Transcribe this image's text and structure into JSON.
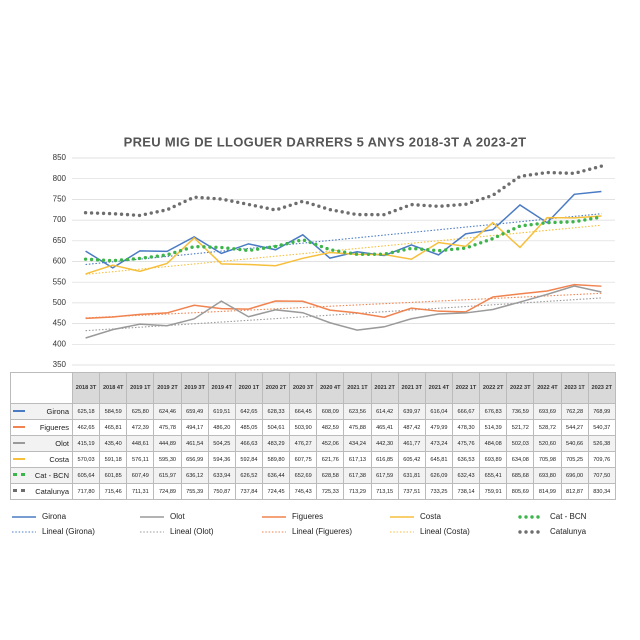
{
  "chart_data": {
    "type": "line",
    "title": "PREU MIG DE LLOGUER DARRERS 5 ANYS 2018-3T A 2023-2T",
    "categories": [
      "2018 3T",
      "2018 4T",
      "2019 1T",
      "2019 2T",
      "2019 3T",
      "2019 4T",
      "2020 1T",
      "2020 2T",
      "2020 3T",
      "2020 4T",
      "2021 1T",
      "2021 2T",
      "2021 3T",
      "2021 4T",
      "2022 1T",
      "2022 2T",
      "2022 3T",
      "2022 4T",
      "2023 1T",
      "2023 2T"
    ],
    "ylim": [
      350,
      850
    ],
    "yticks": [
      350,
      400,
      450,
      500,
      550,
      600,
      650,
      700,
      750,
      800,
      850
    ],
    "grid": true,
    "series": [
      {
        "name": "Girona",
        "color": "#4a7bc4",
        "dash": "solid",
        "trendline": "Lineal (Girona)",
        "values": [
          625.18,
          584.59,
          625.8,
          624.46,
          659.49,
          619.51,
          642.65,
          628.33,
          664.45,
          608.09,
          623.56,
          614.42,
          639.97,
          616.04,
          666.67,
          676.83,
          736.59,
          693.69,
          762.28,
          768.99
        ],
        "value_labels": [
          "625,18",
          "584,59",
          "625,80",
          "624,46",
          "659,49",
          "619,51",
          "642,65",
          "628,33",
          "664,45",
          "608,09",
          "623,56",
          "614,42",
          "639,97",
          "616,04",
          "666,67",
          "676,83",
          "736,59",
          "693,69",
          "762,28",
          "768,99"
        ]
      },
      {
        "name": "Figueres",
        "color": "#f0834f",
        "dash": "solid",
        "trendline": "Lineal (Figueres)",
        "values": [
          462.65,
          465.81,
          472.39,
          475.78,
          494.17,
          486.2,
          485.05,
          504.61,
          503.9,
          482.59,
          475.88,
          465.41,
          487.42,
          479.99,
          478.3,
          514.39,
          521.72,
          528.72,
          544.27,
          540.37
        ],
        "value_labels": [
          "462,65",
          "465,81",
          "472,39",
          "475,78",
          "494,17",
          "486,20",
          "485,05",
          "504,61",
          "503,90",
          "482,59",
          "475,88",
          "465,41",
          "487,42",
          "479,99",
          "478,30",
          "514,39",
          "521,72",
          "528,72",
          "544,27",
          "540,37"
        ]
      },
      {
        "name": "Olot",
        "color": "#9a9a9a",
        "dash": "solid",
        "trendline": "Lineal (Olot)",
        "values": [
          415.19,
          435.4,
          448.61,
          444.89,
          461.54,
          504.25,
          466.63,
          483.29,
          476.27,
          452.06,
          434.24,
          442.3,
          461.77,
          473.24,
          475.76,
          484.08,
          502.03,
          520.6,
          540.66,
          526.38
        ],
        "value_labels": [
          "415,19",
          "435,40",
          "448,61",
          "444,89",
          "461,54",
          "504,25",
          "466,63",
          "483,29",
          "476,27",
          "452,06",
          "434,24",
          "442,30",
          "461,77",
          "473,24",
          "475,76",
          "484,08",
          "502,03",
          "520,60",
          "540,66",
          "526,38"
        ]
      },
      {
        "name": "Costa",
        "color": "#f6bf3c",
        "dash": "solid",
        "trendline": "Lineal (Costa)",
        "values": [
          570.03,
          591.18,
          576.11,
          595.3,
          656.99,
          594.36,
          592.84,
          589.8,
          607.75,
          621.76,
          617.13,
          616.85,
          605.42,
          645.81,
          636.53,
          693.89,
          634.08,
          705.98,
          705.25,
          709.76
        ],
        "value_labels": [
          "570,03",
          "591,18",
          "576,11",
          "595,30",
          "656,99",
          "594,36",
          "592,84",
          "589,80",
          "607,75",
          "621,76",
          "617,13",
          "616,85",
          "605,42",
          "645,81",
          "636,53",
          "693,89",
          "634,08",
          "705,98",
          "705,25",
          "709,76"
        ]
      },
      {
        "name": "Cat - BCN",
        "color": "#3db54a",
        "dash": "dotted",
        "values": [
          605.64,
          601.85,
          607.49,
          615.97,
          636.12,
          633.94,
          626.52,
          636.44,
          652.69,
          628.58,
          617.38,
          617.59,
          631.81,
          626.09,
          632.43,
          655.41,
          685.68,
          693.8,
          696.0,
          707.5
        ],
        "value_labels": [
          "605,64",
          "601,85",
          "607,49",
          "615,97",
          "636,12",
          "633,94",
          "626,52",
          "636,44",
          "652,69",
          "628,58",
          "617,38",
          "617,59",
          "631,81",
          "626,09",
          "632,43",
          "655,41",
          "685,68",
          "693,80",
          "696,00",
          "707,50"
        ]
      },
      {
        "name": "Catalunya",
        "color": "#6e6e6e",
        "dash": "dotted",
        "values": [
          717.8,
          715.46,
          711.31,
          724.89,
          755.39,
          750.87,
          737.84,
          724.45,
          745.43,
          725.33,
          713.29,
          713.15,
          737.51,
          733.25,
          738.14,
          759.91,
          805.69,
          814.99,
          812.87,
          830.34
        ],
        "value_labels": [
          "717,80",
          "715,46",
          "711,31",
          "724,89",
          "755,39",
          "750,87",
          "737,84",
          "724,45",
          "745,43",
          "725,33",
          "713,29",
          "713,15",
          "737,51",
          "733,25",
          "738,14",
          "759,91",
          "805,69",
          "814,99",
          "812,87",
          "830,34"
        ]
      }
    ]
  }
}
